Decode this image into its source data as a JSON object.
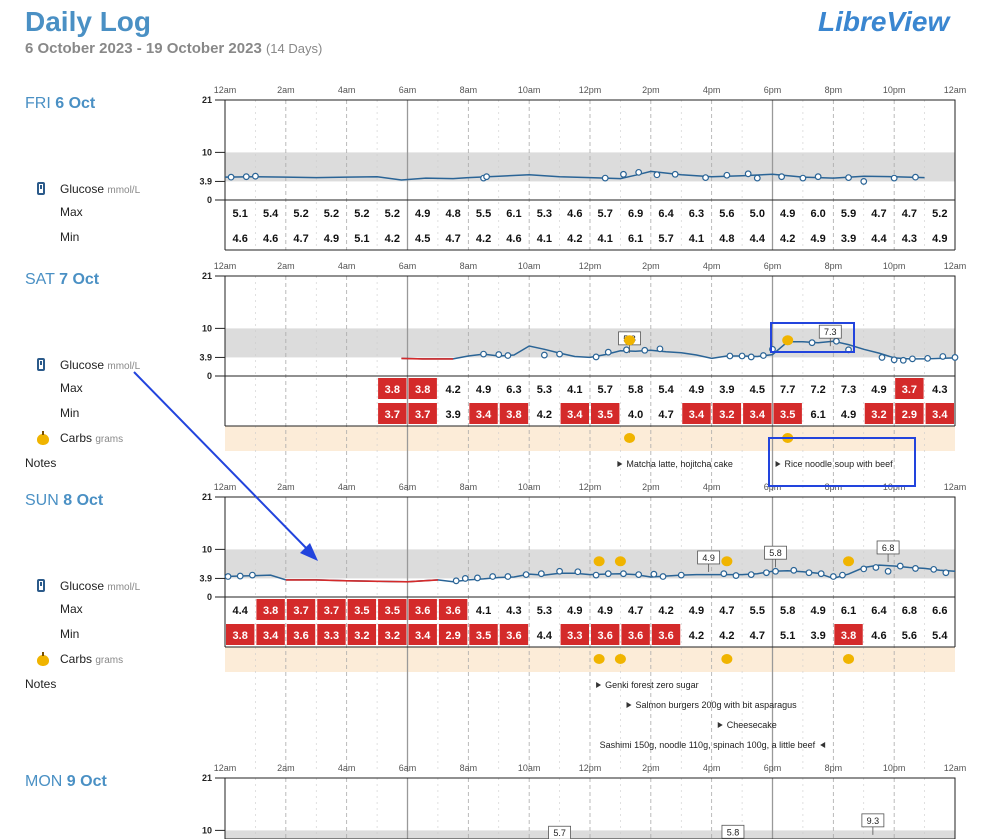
{
  "header": {
    "title": "Daily Log",
    "logo": "LibreView",
    "date_range": "6 October 2023 - 19 October 2023",
    "days": "(14 Days)"
  },
  "labels": {
    "glucose": "Glucose",
    "glucose_unit": "mmol/L",
    "max": "Max",
    "min": "Min",
    "carbs": "Carbs",
    "carbs_unit": "grams",
    "notes": "Notes"
  },
  "colors": {
    "accent": "#4a90c4",
    "glucose_line": "#2a6496",
    "low_line": "#d42a2a",
    "target_band": "#dcdcdc",
    "low_cell": "#d42a2a",
    "carbs_band": "#fcecd8",
    "carbs_icon": "#f0b400",
    "annotation_box": "#2244dd"
  },
  "icons": {
    "glucose": "glucose-meter-icon",
    "carbs": "apple-icon",
    "note": "note-arrow-icon"
  },
  "chart_data": [
    {
      "type": "line",
      "day": "FRI",
      "date": "6 Oct",
      "x_ticks": [
        "12am",
        "2am",
        "4am",
        "6am",
        "8am",
        "10am",
        "12pm",
        "2pm",
        "4pm",
        "6pm",
        "8pm",
        "10pm",
        "12am"
      ],
      "y_ticks": [
        21,
        10,
        3.9,
        0
      ],
      "target_range": [
        3.9,
        10
      ],
      "ylim": [
        0,
        21
      ],
      "glucose_series": {
        "x_hours": [
          0,
          1,
          2,
          3,
          4,
          5,
          5.8,
          6.6,
          7.5,
          8,
          9,
          10,
          11,
          12,
          13,
          13.5,
          14,
          15,
          16,
          17,
          18,
          19,
          20,
          21,
          22,
          23
        ],
        "values": [
          4.8,
          4.9,
          4.8,
          4.7,
          4.8,
          4.9,
          4.2,
          4.6,
          4.5,
          4.7,
          5.0,
          5.3,
          4.9,
          4.7,
          4.5,
          5.2,
          6.0,
          5.3,
          4.9,
          5.1,
          5.4,
          4.8,
          4.6,
          5.0,
          4.9,
          4.7
        ]
      },
      "glucose_points": [
        [
          0.2,
          4.8
        ],
        [
          0.7,
          4.9
        ],
        [
          1,
          5.0
        ],
        [
          8.5,
          4.6
        ],
        [
          8.6,
          4.9
        ],
        [
          12.5,
          4.6
        ],
        [
          13.1,
          5.4
        ],
        [
          13.6,
          5.8
        ],
        [
          14.2,
          5.3
        ],
        [
          14.8,
          5.4
        ],
        [
          15.8,
          4.7
        ],
        [
          16.5,
          5.2
        ],
        [
          17.2,
          5.5
        ],
        [
          17.5,
          4.6
        ],
        [
          18.3,
          4.9
        ],
        [
          19,
          4.6
        ],
        [
          19.5,
          4.9
        ],
        [
          20.5,
          4.7
        ],
        [
          21,
          3.9
        ],
        [
          22,
          4.6
        ],
        [
          22.7,
          4.8
        ]
      ],
      "max": [
        "5.1",
        "5.4",
        "5.2",
        "5.2",
        "5.2",
        "5.2",
        "4.9",
        "4.8",
        "5.5",
        "6.1",
        "5.3",
        "4.6",
        "5.7",
        "6.9",
        "6.4",
        "6.3",
        "5.6",
        "5.0",
        "4.9",
        "6.0",
        "5.9",
        "4.7",
        "4.7",
        "5.2"
      ],
      "min": [
        "4.6",
        "4.6",
        "4.7",
        "4.9",
        "5.1",
        "4.2",
        "4.5",
        "4.7",
        "4.2",
        "4.6",
        "4.1",
        "4.2",
        "4.1",
        "6.1",
        "5.7",
        "4.1",
        "4.8",
        "4.4",
        "4.2",
        "4.9",
        "3.9",
        "4.4",
        "4.3",
        "4.9"
      ],
      "low_max": [],
      "low_min": [],
      "carbs_hours": [],
      "callouts": [],
      "notes": []
    },
    {
      "type": "line",
      "day": "SAT",
      "date": "7 Oct",
      "x_ticks": [
        "12am",
        "2am",
        "4am",
        "6am",
        "8am",
        "10am",
        "12pm",
        "2pm",
        "4pm",
        "6pm",
        "8pm",
        "10pm",
        "12am"
      ],
      "y_ticks": [
        21,
        10,
        3.9,
        0
      ],
      "target_range": [
        3.9,
        10
      ],
      "ylim": [
        0,
        21
      ],
      "glucose_series": {
        "x_hours": [
          5.8,
          6.5,
          7,
          7.5,
          8,
          8.5,
          9,
          9.5,
          10,
          10.5,
          11,
          11.5,
          12,
          12.5,
          13,
          13.5,
          14,
          14.5,
          15,
          15.5,
          16,
          16.5,
          17,
          17.5,
          18,
          18.5,
          19,
          19.5,
          20,
          20.5,
          21,
          21.5,
          22,
          22.5,
          23,
          23.5,
          24
        ],
        "values": [
          3.7,
          3.6,
          3.6,
          3.6,
          4.2,
          4.6,
          4.2,
          4.4,
          6.3,
          5.6,
          4.8,
          4.1,
          3.9,
          4.5,
          5.3,
          5.2,
          5.4,
          5.1,
          4.9,
          4.4,
          3.7,
          4.2,
          4.2,
          4.1,
          4.5,
          7.2,
          7.2,
          7.0,
          7.3,
          6.6,
          5.6,
          4.8,
          3.8,
          3.6,
          3.6,
          3.7,
          3.8
        ]
      },
      "low_segments": [
        [
          5.8,
          7.8
        ],
        [
          15.8,
          16.3
        ]
      ],
      "glucose_points": [
        [
          8.5,
          4.6
        ],
        [
          9,
          4.5
        ],
        [
          9.3,
          4.3
        ],
        [
          10.5,
          4.4
        ],
        [
          11,
          4.6
        ],
        [
          12.2,
          4.0
        ],
        [
          12.6,
          5.0
        ],
        [
          13.2,
          5.5
        ],
        [
          13.8,
          5.4
        ],
        [
          14.3,
          5.7
        ],
        [
          16.6,
          4.2
        ],
        [
          17,
          4.2
        ],
        [
          17.3,
          4.0
        ],
        [
          17.7,
          4.3
        ],
        [
          18,
          5.6
        ],
        [
          18.5,
          7.2
        ],
        [
          19.3,
          7.0
        ],
        [
          20.1,
          7.3
        ],
        [
          20.5,
          5.5
        ],
        [
          21.6,
          3.9
        ],
        [
          22,
          3.4
        ],
        [
          22.3,
          3.3
        ],
        [
          22.6,
          3.6
        ],
        [
          23.1,
          3.7
        ],
        [
          23.6,
          4.1
        ],
        [
          24,
          3.9
        ]
      ],
      "max": [
        "",
        "",
        "",
        "",
        "",
        "3.8",
        "3.8",
        "4.2",
        "4.9",
        "6.3",
        "5.3",
        "4.1",
        "5.7",
        "5.8",
        "5.4",
        "4.9",
        "3.9",
        "4.5",
        "7.7",
        "7.2",
        "7.3",
        "4.9",
        "3.7",
        "4.3"
      ],
      "min": [
        "",
        "",
        "",
        "",
        "",
        "3.7",
        "3.7",
        "3.9",
        "3.4",
        "3.8",
        "4.2",
        "3.4",
        "3.5",
        "4.0",
        "4.7",
        "3.4",
        "3.2",
        "3.4",
        "3.5",
        "6.1",
        "4.9",
        "3.2",
        "2.9",
        "3.4"
      ],
      "low_max": [
        5,
        6,
        22
      ],
      "low_min": [
        5,
        6,
        8,
        9,
        11,
        12,
        15,
        16,
        17,
        18,
        21,
        22,
        23
      ],
      "carbs_hours": [
        13.3,
        18.5
      ],
      "callouts": [
        {
          "hour": 13.3,
          "value": "5.8",
          "level": 7.8
        },
        {
          "hour": 19.9,
          "value": "7.3",
          "level": 9.2
        }
      ],
      "notes": [
        {
          "hour": 12.9,
          "row": 0,
          "text": "Matcha latte, hojitcha cake"
        },
        {
          "hour": 18.1,
          "row": 0,
          "text": "Rice noodle soup with beef"
        }
      ]
    },
    {
      "type": "line",
      "day": "SUN",
      "date": "8 Oct",
      "x_ticks": [
        "12am",
        "2am",
        "4am",
        "6am",
        "8am",
        "10am",
        "12pm",
        "2pm",
        "4pm",
        "6pm",
        "8pm",
        "10pm",
        "12am"
      ],
      "y_ticks": [
        21,
        10,
        3.9,
        0
      ],
      "target_range": [
        3.9,
        10
      ],
      "ylim": [
        0,
        21
      ],
      "glucose_series": {
        "x_hours": [
          0,
          0.5,
          1,
          1.5,
          2,
          3,
          4,
          5,
          6,
          7,
          7.5,
          8,
          8.5,
          9,
          9.5,
          10,
          10.5,
          11,
          11.5,
          12,
          12.5,
          13,
          13.5,
          14,
          15,
          15.5,
          16,
          16.5,
          17,
          17.5,
          18,
          18.5,
          19,
          19.5,
          20,
          20.5,
          21,
          21.5,
          22,
          22.5,
          23,
          23.5,
          24
        ],
        "values": [
          4.3,
          4.4,
          4.5,
          4.6,
          3.6,
          3.6,
          3.4,
          3.3,
          3.2,
          3.6,
          3.2,
          3.6,
          3.8,
          4.1,
          4.2,
          4.8,
          4.6,
          5.0,
          5.0,
          4.7,
          4.8,
          4.9,
          4.7,
          4.2,
          4.6,
          4.7,
          4.7,
          4.7,
          4.7,
          4.9,
          5.4,
          5.5,
          5.3,
          5.0,
          3.9,
          4.8,
          6.2,
          6.7,
          6.5,
          6.2,
          6.0,
          5.6,
          5.4
        ]
      },
      "low_segments": [
        [
          1.8,
          7.2
        ]
      ],
      "glucose_points": [
        [
          0.1,
          4.3
        ],
        [
          0.5,
          4.4
        ],
        [
          0.9,
          4.6
        ],
        [
          7.6,
          3.4
        ],
        [
          7.9,
          3.9
        ],
        [
          8.3,
          4.0
        ],
        [
          8.8,
          4.3
        ],
        [
          9.3,
          4.3
        ],
        [
          9.9,
          4.7
        ],
        [
          10.4,
          4.9
        ],
        [
          11,
          5.4
        ],
        [
          11.6,
          5.3
        ],
        [
          12.2,
          4.6
        ],
        [
          12.6,
          4.9
        ],
        [
          13.1,
          4.9
        ],
        [
          13.6,
          4.7
        ],
        [
          14.1,
          4.8
        ],
        [
          14.4,
          4.3
        ],
        [
          15,
          4.6
        ],
        [
          16.4,
          4.9
        ],
        [
          16.8,
          4.5
        ],
        [
          17.3,
          4.7
        ],
        [
          17.8,
          5.1
        ],
        [
          18.1,
          5.4
        ],
        [
          18.7,
          5.6
        ],
        [
          19.2,
          5.1
        ],
        [
          19.6,
          4.9
        ],
        [
          20,
          4.3
        ],
        [
          20.3,
          4.6
        ],
        [
          21,
          5.9
        ],
        [
          21.4,
          6.2
        ],
        [
          21.8,
          5.4
        ],
        [
          22.2,
          6.5
        ],
        [
          22.7,
          6.0
        ],
        [
          23.3,
          5.8
        ],
        [
          23.7,
          5.1
        ]
      ],
      "max": [
        "4.4",
        "3.8",
        "3.7",
        "3.7",
        "3.5",
        "3.5",
        "3.6",
        "3.6",
        "4.1",
        "4.3",
        "5.3",
        "4.9",
        "4.9",
        "4.7",
        "4.2",
        "4.9",
        "4.7",
        "5.5",
        "5.8",
        "4.9",
        "6.1",
        "6.4",
        "6.8",
        "6.6"
      ],
      "min": [
        "3.8",
        "3.4",
        "3.6",
        "3.3",
        "3.2",
        "3.2",
        "3.4",
        "2.9",
        "3.5",
        "3.6",
        "4.4",
        "3.3",
        "3.6",
        "3.6",
        "3.6",
        "4.2",
        "4.2",
        "4.7",
        "5.1",
        "3.9",
        "3.8",
        "4.6",
        "5.6",
        "5.4"
      ],
      "low_max": [
        1,
        2,
        3,
        4,
        5,
        6,
        7
      ],
      "low_min": [
        0,
        1,
        2,
        3,
        4,
        5,
        6,
        7,
        8,
        9,
        11,
        12,
        13,
        14,
        20
      ],
      "carbs_hours": [
        12.3,
        13.0,
        16.5,
        20.5
      ],
      "callouts": [
        {
          "hour": 15.9,
          "value": "4.9",
          "level": 8.2
        },
        {
          "hour": 18.1,
          "value": "5.8",
          "level": 9.2
        },
        {
          "hour": 21.8,
          "value": "6.8",
          "level": 10.3
        }
      ],
      "notes": [
        {
          "hour": 12.2,
          "row": 0,
          "text": "Genki forest zero sugar"
        },
        {
          "hour": 13.2,
          "row": 1,
          "text": "Salmon burgers 200g with bit asparagus"
        },
        {
          "hour": 16.2,
          "row": 2,
          "text": "Cheesecake"
        },
        {
          "hour": 19.6,
          "row": 3,
          "text": "Sashimi 150g, noodle 110g, spinach 100g, a little beef",
          "dir": "left"
        }
      ]
    },
    {
      "type": "line",
      "day": "MON",
      "date": "9 Oct",
      "x_ticks": [
        "12am",
        "2am",
        "4am",
        "6am",
        "8am",
        "10am",
        "12pm",
        "2pm",
        "4pm",
        "6pm",
        "8pm",
        "10pm",
        "12am"
      ],
      "y_ticks": [
        21,
        10
      ],
      "target_range": [
        3.9,
        10
      ],
      "ylim": [
        0,
        21
      ],
      "callouts": [
        {
          "hour": 11,
          "value": "5.7",
          "level": 9.4
        },
        {
          "hour": 16.7,
          "value": "5.8",
          "level": 9.6
        },
        {
          "hour": 21.3,
          "value": "9.3",
          "level": 12.0
        }
      ],
      "carbs_hours": [
        9.3,
        13.3,
        16.2,
        21.3
      ],
      "partial": true
    }
  ]
}
